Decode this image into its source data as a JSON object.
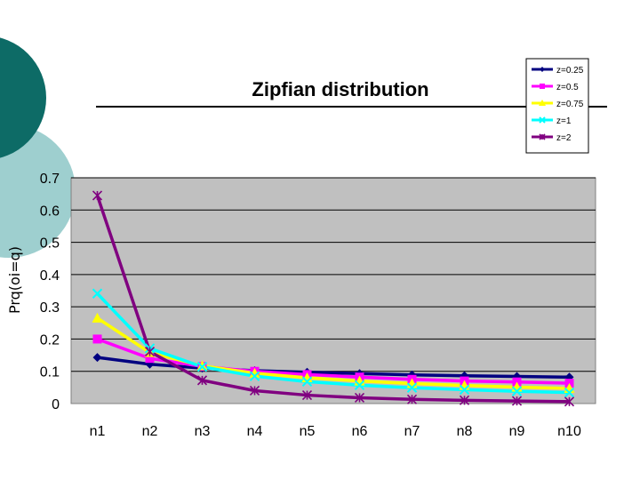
{
  "slide": {
    "decor_colors": {
      "outer_circle": "#9ecfcf",
      "inner_circle": "#0d6b66",
      "rule": "#000000"
    }
  },
  "chart_data": {
    "type": "line",
    "title": "Zipfian distribution",
    "ylabel": "Prq(oi=q)",
    "xlabel": "",
    "categories": [
      "n1",
      "n2",
      "n3",
      "n4",
      "n5",
      "n6",
      "n7",
      "n8",
      "n9",
      "n10"
    ],
    "ylim": [
      0,
      0.7
    ],
    "yticks": [
      0,
      0.1,
      0.2,
      0.3,
      0.4,
      0.5,
      0.6,
      0.7
    ],
    "ytick_labels": [
      "0",
      "0.1",
      "0.2",
      "0.3",
      "0.4",
      "0.5",
      "0.6",
      "0.7"
    ],
    "grid": true,
    "plot_background": "#c0c0c0",
    "legend_position": "top-right",
    "series": [
      {
        "name": "z=0.25",
        "color": "#000080",
        "marker": "diamond",
        "values": [
          0.143,
          0.122,
          0.11,
          0.102,
          0.097,
          0.093,
          0.089,
          0.086,
          0.084,
          0.082
        ]
      },
      {
        "name": "z=0.5",
        "color": "#ff00ff",
        "marker": "square",
        "values": [
          0.2,
          0.14,
          0.115,
          0.1,
          0.09,
          0.082,
          0.075,
          0.07,
          0.067,
          0.063
        ]
      },
      {
        "name": "z=0.75",
        "color": "#ffff00",
        "marker": "triangle",
        "values": [
          0.265,
          0.158,
          0.117,
          0.094,
          0.08,
          0.07,
          0.062,
          0.056,
          0.051,
          0.047
        ]
      },
      {
        "name": "z=1",
        "color": "#00ffff",
        "marker": "x",
        "values": [
          0.341,
          0.171,
          0.114,
          0.085,
          0.068,
          0.057,
          0.049,
          0.043,
          0.038,
          0.034
        ]
      },
      {
        "name": "z=2",
        "color": "#800080",
        "marker": "star",
        "values": [
          0.645,
          0.161,
          0.072,
          0.04,
          0.026,
          0.018,
          0.013,
          0.01,
          0.008,
          0.006
        ]
      }
    ]
  }
}
